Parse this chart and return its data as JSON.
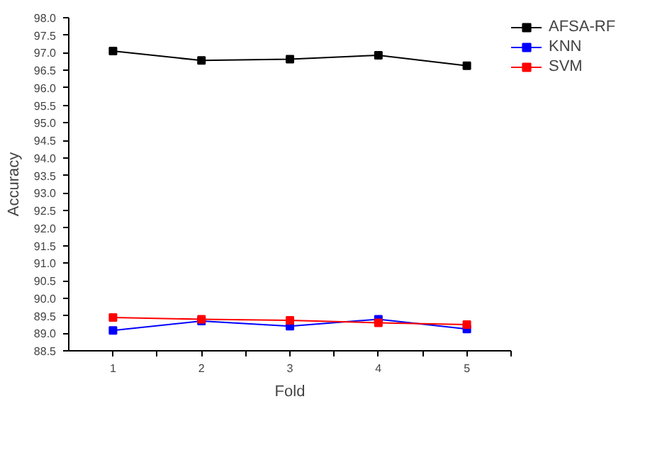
{
  "chart_data": {
    "type": "line",
    "xlabel": "Fold",
    "ylabel": "Accuracy",
    "x": [
      1,
      2,
      3,
      4,
      5
    ],
    "series": [
      {
        "name": "AFSA-RF",
        "color": "#000000",
        "values": [
          97.05,
          96.78,
          96.82,
          96.93,
          96.63
        ]
      },
      {
        "name": "KNN",
        "color": "#0000ff",
        "values": [
          89.08,
          89.35,
          89.2,
          89.4,
          89.12
        ]
      },
      {
        "name": "SVM",
        "color": "#ff0000",
        "values": [
          89.45,
          89.4,
          89.37,
          89.3,
          89.25
        ]
      }
    ],
    "xlim": [
      0.5,
      5.5
    ],
    "xticks": [
      1,
      {
        "value": 1.5,
        "label": null
      },
      2,
      {
        "value": 2.5,
        "label": null
      },
      3,
      {
        "value": 3.5,
        "label": null
      },
      4,
      {
        "value": 4.5,
        "label": null
      },
      5,
      {
        "value": 5.5,
        "label": null
      }
    ],
    "ylim": [
      88.5,
      98.0
    ],
    "yticks": [
      {
        "value": 88.5,
        "label": "88.5"
      },
      {
        "value": 89,
        "label": "89.0"
      },
      {
        "value": 89.5,
        "label": "89.5"
      },
      {
        "value": 90,
        "label": "90.0"
      },
      {
        "value": 90.5,
        "label": "90.5"
      },
      {
        "value": 91,
        "label": "91.0"
      },
      {
        "value": 91.5,
        "label": "91.5"
      },
      {
        "value": 92,
        "label": "92.0"
      },
      {
        "value": 92.5,
        "label": "92.5"
      },
      {
        "value": 93,
        "label": "93.0"
      },
      {
        "value": 93.5,
        "label": "93.5"
      },
      {
        "value": 94,
        "label": "94.0"
      },
      {
        "value": 94.5,
        "label": "94.5"
      },
      {
        "value": 95,
        "label": "95.0"
      },
      {
        "value": 95.5,
        "label": "95.5"
      },
      {
        "value": 96,
        "label": "96.0"
      },
      {
        "value": 96.5,
        "label": "96.5"
      },
      {
        "value": 97,
        "label": "97.0"
      },
      {
        "value": 97.5,
        "label": "97.5"
      },
      {
        "value": 98,
        "label": "98.0"
      }
    ],
    "grid": false,
    "legend": "top right",
    "marker": "square",
    "line_style": "solid"
  }
}
